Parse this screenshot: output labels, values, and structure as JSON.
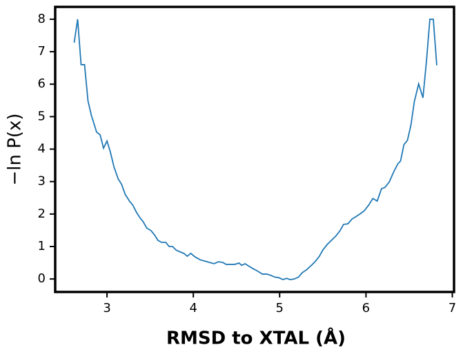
{
  "chart_data": {
    "type": "line",
    "xlabel": "RMSD to XTAL (Å)",
    "ylabel": "−ln P(x)",
    "color": "#1f77b4",
    "xlim": [
      2.4,
      7.02
    ],
    "ylim": [
      -0.4,
      8.38
    ],
    "xticks": [
      3,
      4,
      5,
      6,
      7
    ],
    "yticks": [
      0,
      1,
      2,
      3,
      4,
      5,
      6,
      7,
      8
    ],
    "x": [
      2.62,
      2.66,
      2.7,
      2.74,
      2.78,
      2.82,
      2.88,
      2.92,
      2.96,
      3.0,
      3.04,
      3.08,
      3.13,
      3.17,
      3.21,
      3.26,
      3.3,
      3.34,
      3.38,
      3.42,
      3.46,
      3.51,
      3.55,
      3.59,
      3.63,
      3.68,
      3.72,
      3.76,
      3.8,
      3.85,
      3.89,
      3.93,
      3.97,
      4.02,
      4.08,
      4.16,
      4.24,
      4.29,
      4.34,
      4.38,
      4.48,
      4.53,
      4.56,
      4.6,
      4.64,
      4.69,
      4.74,
      4.8,
      4.85,
      4.9,
      4.94,
      4.99,
      5.04,
      5.08,
      5.12,
      5.17,
      5.22,
      5.26,
      5.31,
      5.36,
      5.41,
      5.46,
      5.5,
      5.55,
      5.6,
      5.65,
      5.7,
      5.74,
      5.79,
      5.84,
      5.89,
      5.94,
      5.98,
      6.03,
      6.08,
      6.13,
      6.18,
      6.22,
      6.27,
      6.32,
      6.37,
      6.4,
      6.44,
      6.48,
      6.52,
      6.56,
      6.61,
      6.66,
      6.7,
      6.74,
      6.78,
      6.82
    ],
    "values": [
      7.28,
      8.0,
      6.6,
      6.6,
      5.48,
      5.03,
      4.52,
      4.44,
      4.03,
      4.25,
      3.9,
      3.46,
      3.08,
      2.91,
      2.61,
      2.4,
      2.27,
      2.06,
      1.89,
      1.76,
      1.57,
      1.49,
      1.36,
      1.19,
      1.13,
      1.13,
      1.0,
      1.0,
      0.89,
      0.83,
      0.79,
      0.7,
      0.79,
      0.68,
      0.59,
      0.53,
      0.47,
      0.53,
      0.51,
      0.45,
      0.45,
      0.49,
      0.42,
      0.47,
      0.4,
      0.32,
      0.25,
      0.15,
      0.15,
      0.11,
      0.06,
      0.04,
      -0.02,
      0.02,
      -0.02,
      0.0,
      0.06,
      0.19,
      0.28,
      0.4,
      0.53,
      0.7,
      0.89,
      1.06,
      1.19,
      1.32,
      1.49,
      1.68,
      1.7,
      1.85,
      1.93,
      2.02,
      2.1,
      2.27,
      2.48,
      2.4,
      2.78,
      2.82,
      2.99,
      3.29,
      3.55,
      3.63,
      4.14,
      4.27,
      4.73,
      5.46,
      6.01,
      5.58,
      6.69,
      8.0,
      8.0,
      6.58
    ]
  }
}
